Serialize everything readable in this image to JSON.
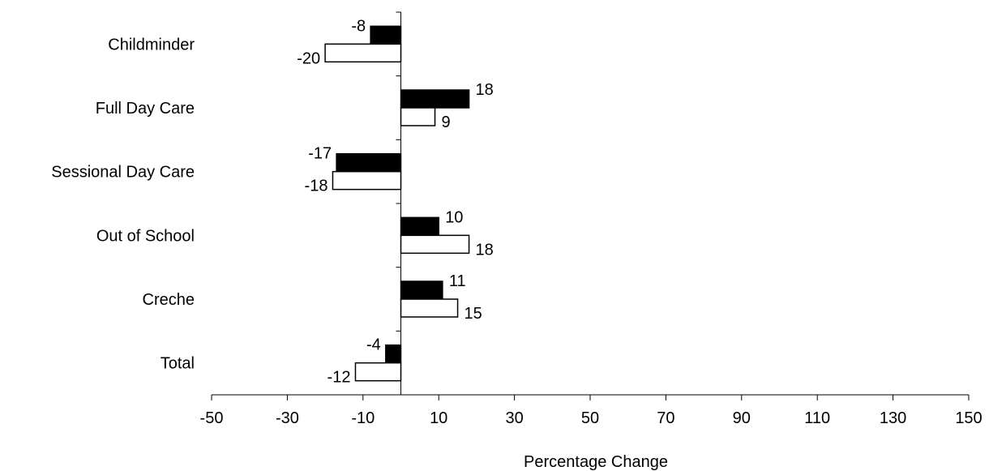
{
  "chart_data": {
    "type": "bar",
    "orientation": "horizontal",
    "categories": [
      "Childminder",
      "Full Day Care",
      "Sessional Day Care",
      "Out of School",
      "Creche",
      "Total"
    ],
    "series": [
      {
        "color": "#000000",
        "values": [
          -8,
          18,
          -17,
          10,
          11,
          -4
        ]
      },
      {
        "color": "#ffffff",
        "values": [
          -20,
          9,
          -18,
          18,
          15,
          -12
        ]
      }
    ],
    "xlabel": "Percentage Change",
    "xlim": [
      -50,
      150
    ],
    "xticks": [
      -50,
      -30,
      -10,
      10,
      30,
      50,
      70,
      90,
      110,
      130,
      150
    ],
    "grid": false,
    "legend": "none"
  }
}
